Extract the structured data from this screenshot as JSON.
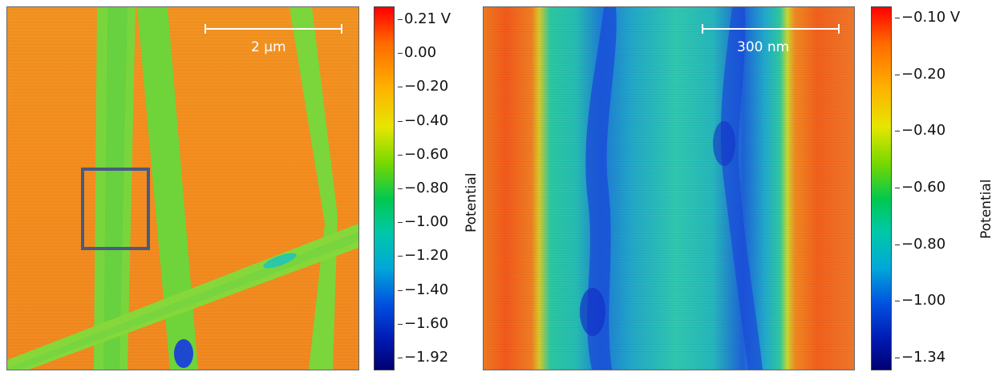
{
  "panels": [
    {
      "scalebar_label": "2 µm",
      "colorbar_ticks": [
        "0.21 V",
        "0.00",
        "−0.20",
        "−0.40",
        "−0.60",
        "−0.80",
        "−1.00",
        "−1.20",
        "−1.40",
        "−1.60",
        "−1.92"
      ],
      "axis_title": "Potential"
    },
    {
      "scalebar_label": "300 nm",
      "colorbar_ticks": [
        "−0.10 V",
        "−0.20",
        "−0.40",
        "−0.60",
        "−0.80",
        "−1.00",
        "−1.34"
      ],
      "axis_title": "Potential"
    }
  ],
  "colors": {
    "background_orange": "#f08a1e",
    "fiber_green": "#6cd43a",
    "fiber_teal": "#2cc6a8",
    "dark_blue": "#1a3ad6",
    "highlight_box": "#4a5a80"
  }
}
